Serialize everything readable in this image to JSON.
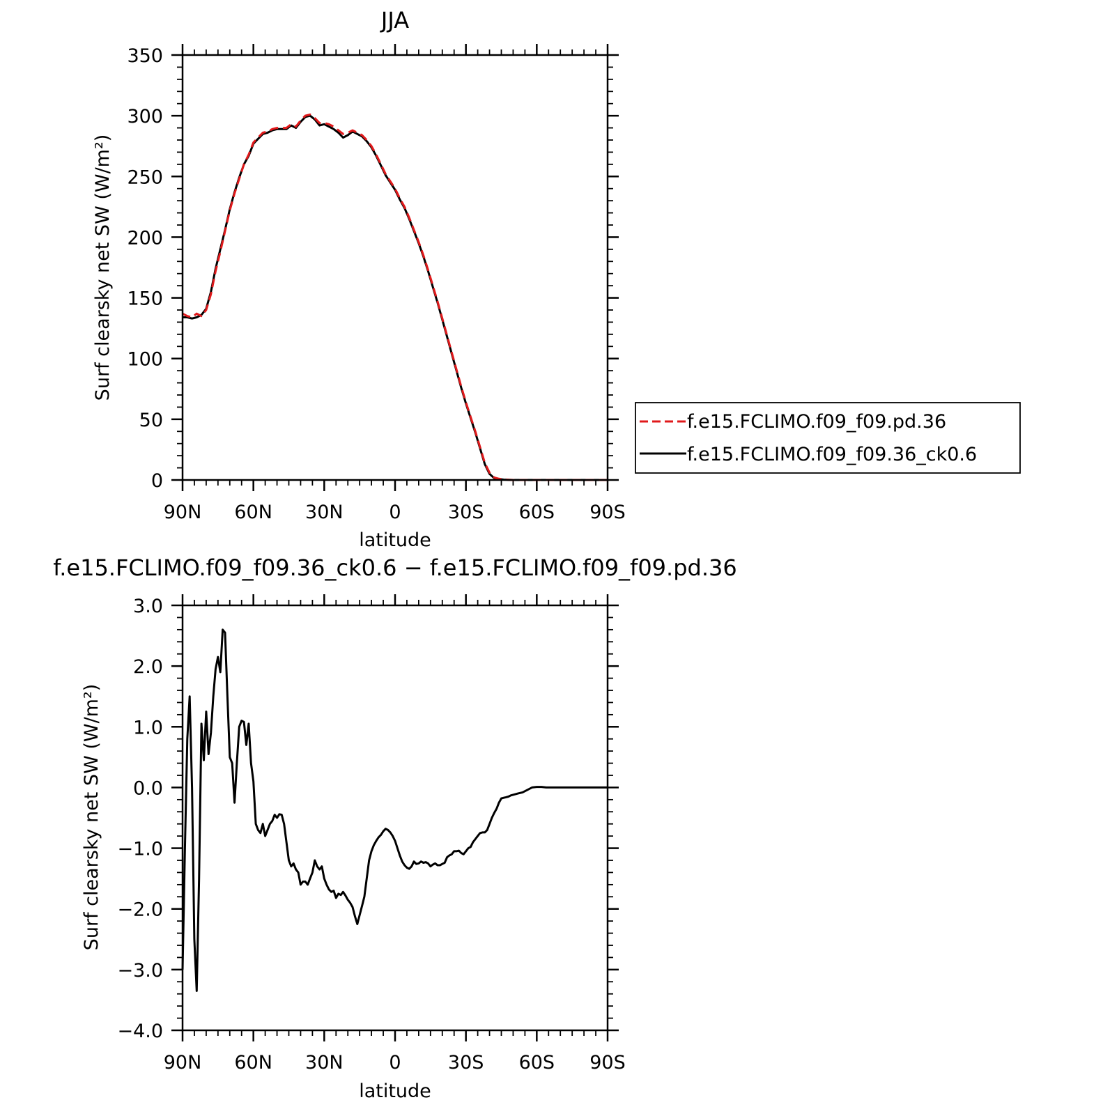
{
  "chart_data": [
    {
      "type": "line",
      "title": "JJA",
      "xlabel": "latitude",
      "ylabel": "Surf clearsky net SW (W/m²)",
      "xlim": [
        90,
        -90
      ],
      "ylim": [
        0,
        350
      ],
      "xticks": [
        90,
        60,
        30,
        0,
        -30,
        -60,
        -90
      ],
      "xtick_labels": [
        "90N",
        "60N",
        "30N",
        "0",
        "30S",
        "60S",
        "90S"
      ],
      "yticks": [
        0,
        50,
        100,
        150,
        200,
        250,
        300,
        350
      ],
      "ytick_labels": [
        "0",
        "50",
        "100",
        "150",
        "200",
        "250",
        "300",
        "350"
      ],
      "legend": "outside-right",
      "grid": false,
      "series": [
        {
          "name": "f.e15.FCLIMO.f09_f09.pd.36",
          "color": "#e0191b",
          "dash": "dashed",
          "x": [
            90,
            88,
            86,
            84,
            82,
            80,
            78,
            76,
            74,
            72,
            70,
            68,
            66,
            64,
            62,
            60,
            58,
            56,
            54,
            52,
            50,
            48,
            46,
            44,
            42,
            40,
            38,
            36,
            34,
            32,
            30,
            28,
            26,
            24,
            22,
            20,
            18,
            16,
            14,
            12,
            10,
            8,
            6,
            4,
            2,
            0,
            -2,
            -4,
            -6,
            -8,
            -10,
            -12,
            -14,
            -16,
            -18,
            -20,
            -22,
            -24,
            -26,
            -28,
            -30,
            -32,
            -34,
            -36,
            -38,
            -40,
            -42,
            -44,
            -46,
            -48,
            -50,
            -52,
            -54,
            -56,
            -58,
            -60,
            -62,
            -64,
            -66,
            -68,
            -70,
            -72,
            -74,
            -76,
            -78,
            -80,
            -82,
            -84,
            -86,
            -88,
            -90
          ],
          "y": [
            137,
            135,
            134,
            137,
            135,
            140,
            153,
            172,
            188,
            205,
            222,
            236,
            248,
            260,
            268,
            278,
            282,
            286,
            287,
            289,
            290,
            290,
            290,
            293,
            291,
            296,
            300,
            301,
            298,
            294,
            294,
            293,
            291,
            288,
            285,
            286,
            288,
            286,
            284,
            280,
            275,
            268,
            260,
            252,
            246,
            240,
            232,
            225,
            216,
            206,
            196,
            185,
            173,
            160,
            147,
            133,
            119,
            105,
            91,
            77,
            64,
            52,
            40,
            27,
            14,
            6,
            2,
            1,
            0.5,
            0.2,
            0,
            0,
            0,
            0,
            0,
            0,
            0,
            0,
            0,
            0,
            0,
            0,
            0,
            0,
            0,
            0,
            0,
            0,
            0,
            0,
            0
          ]
        },
        {
          "name": "f.e15.FCLIMO.f09_f09.36_ck0.6",
          "color": "#000000",
          "dash": "solid",
          "x": [
            90,
            88,
            86,
            84,
            82,
            80,
            78,
            76,
            74,
            72,
            70,
            68,
            66,
            64,
            62,
            60,
            58,
            56,
            54,
            52,
            50,
            48,
            46,
            44,
            42,
            40,
            38,
            36,
            34,
            32,
            30,
            28,
            26,
            24,
            22,
            20,
            18,
            16,
            14,
            12,
            10,
            8,
            6,
            4,
            2,
            0,
            -2,
            -4,
            -6,
            -8,
            -10,
            -12,
            -14,
            -16,
            -18,
            -20,
            -22,
            -24,
            -26,
            -28,
            -30,
            -32,
            -34,
            -36,
            -38,
            -40,
            -42,
            -44,
            -46,
            -48,
            -50,
            -52,
            -54,
            -56,
            -58,
            -60,
            -62,
            -64,
            -66,
            -68,
            -70,
            -72,
            -74,
            -76,
            -78,
            -80,
            -82,
            -84,
            -86,
            -88,
            -90
          ],
          "y": [
            134,
            134,
            133,
            134,
            136,
            141,
            155,
            174,
            190,
            206,
            223,
            237,
            249,
            260,
            267,
            277,
            281,
            285,
            286,
            288,
            289,
            289,
            289,
            292,
            290,
            295,
            299,
            300,
            297,
            292,
            293,
            291,
            289,
            286,
            282,
            284,
            287,
            285,
            283,
            279,
            274,
            267,
            259,
            251,
            245,
            239,
            231,
            224,
            215,
            205,
            195,
            184,
            172,
            159,
            146,
            132,
            118,
            104,
            90,
            76,
            63,
            51,
            39,
            26,
            13,
            5,
            1.5,
            0.8,
            0.3,
            0.1,
            0,
            0,
            0,
            0,
            0,
            0,
            0,
            0,
            0,
            0,
            0,
            0,
            0,
            0,
            0,
            0,
            0,
            0,
            0,
            0,
            0
          ]
        }
      ]
    },
    {
      "type": "line",
      "title": "f.e15.FCLIMO.f09_f09.36_ck0.6 − f.e15.FCLIMO.f09_f09.pd.36",
      "xlabel": "latitude",
      "ylabel": "Surf clearsky net SW (W/m²)",
      "xlim": [
        90,
        -90
      ],
      "ylim": [
        -4.0,
        3.0
      ],
      "xticks": [
        90,
        60,
        30,
        0,
        -30,
        -60,
        -90
      ],
      "xtick_labels": [
        "90N",
        "60N",
        "30N",
        "0",
        "30S",
        "60S",
        "90S"
      ],
      "yticks": [
        -4.0,
        -3.0,
        -2.0,
        -1.0,
        0.0,
        1.0,
        2.0,
        3.0
      ],
      "ytick_labels": [
        "−4.0",
        "−3.0",
        "−2.0",
        "−1.0",
        "0.0",
        "1.0",
        "2.0",
        "3.0"
      ],
      "grid": false,
      "series": [
        {
          "color": "#000000",
          "dash": "solid",
          "x": [
            90,
            89,
            88,
            87,
            86,
            85,
            84,
            83,
            82,
            81,
            80,
            79,
            78,
            77,
            76,
            75,
            74,
            73,
            72,
            71,
            70,
            69,
            68,
            67,
            66,
            65,
            64,
            63,
            62,
            61,
            60,
            59,
            58,
            57,
            56,
            55,
            54,
            53,
            52,
            51,
            50,
            49,
            48,
            47,
            46,
            45,
            44,
            43,
            42,
            41,
            40,
            39,
            38,
            37,
            36,
            35,
            34,
            33,
            32,
            31,
            30,
            29,
            28,
            27,
            26,
            25,
            24,
            23,
            22,
            21,
            20,
            19,
            18,
            17,
            16,
            15,
            14,
            13,
            12,
            11,
            10,
            9,
            8,
            7,
            6,
            5,
            4,
            3,
            2,
            1,
            0,
            -1,
            -2,
            -3,
            -4,
            -5,
            -6,
            -7,
            -8,
            -9,
            -10,
            -11,
            -12,
            -13,
            -14,
            -15,
            -16,
            -17,
            -18,
            -19,
            -20,
            -21,
            -22,
            -23,
            -24,
            -25,
            -26,
            -27,
            -28,
            -29,
            -30,
            -31,
            -32,
            -33,
            -34,
            -35,
            -36,
            -37,
            -38,
            -39,
            -40,
            -41,
            -42,
            -43,
            -44,
            -45,
            -46,
            -47,
            -48,
            -49,
            -50,
            -52,
            -54,
            -56,
            -58,
            -60,
            -62,
            -64,
            -66,
            -68,
            -70,
            -75,
            -80,
            -85,
            -90
          ],
          "y": [
            -3.0,
            -1.0,
            0.8,
            1.5,
            0.0,
            -2.5,
            -3.35,
            -1.5,
            1.05,
            0.45,
            1.25,
            0.55,
            0.9,
            1.5,
            1.95,
            2.15,
            1.9,
            2.6,
            2.55,
            1.5,
            0.5,
            0.4,
            -0.25,
            0.4,
            1.0,
            1.1,
            1.08,
            0.7,
            1.05,
            0.4,
            0.1,
            -0.6,
            -0.7,
            -0.75,
            -0.6,
            -0.8,
            -0.7,
            -0.6,
            -0.55,
            -0.45,
            -0.5,
            -0.44,
            -0.45,
            -0.6,
            -0.9,
            -1.2,
            -1.3,
            -1.25,
            -1.35,
            -1.4,
            -1.6,
            -1.55,
            -1.55,
            -1.6,
            -1.5,
            -1.4,
            -1.2,
            -1.3,
            -1.35,
            -1.3,
            -1.5,
            -1.6,
            -1.68,
            -1.72,
            -1.7,
            -1.82,
            -1.75,
            -1.77,
            -1.72,
            -1.78,
            -1.85,
            -1.9,
            -1.97,
            -2.12,
            -2.25,
            -2.1,
            -1.95,
            -1.8,
            -1.5,
            -1.2,
            -1.05,
            -0.95,
            -0.88,
            -0.82,
            -0.78,
            -0.72,
            -0.68,
            -0.7,
            -0.74,
            -0.8,
            -0.88,
            -1.0,
            -1.12,
            -1.22,
            -1.28,
            -1.32,
            -1.34,
            -1.3,
            -1.22,
            -1.26,
            -1.25,
            -1.22,
            -1.24,
            -1.23,
            -1.25,
            -1.3,
            -1.27,
            -1.25,
            -1.28,
            -1.28,
            -1.26,
            -1.24,
            -1.15,
            -1.12,
            -1.1,
            -1.05,
            -1.05,
            -1.04,
            -1.08,
            -1.1,
            -1.05,
            -1.0,
            -0.98,
            -0.9,
            -0.85,
            -0.8,
            -0.75,
            -0.74,
            -0.74,
            -0.7,
            -0.6,
            -0.5,
            -0.42,
            -0.35,
            -0.25,
            -0.18,
            -0.17,
            -0.16,
            -0.15,
            -0.13,
            -0.12,
            -0.1,
            -0.08,
            -0.04,
            0.0,
            0.01,
            0.01,
            0.0,
            0.0,
            0.0,
            0.0,
            0.0,
            0.0,
            0.0,
            0.0
          ]
        }
      ]
    }
  ]
}
